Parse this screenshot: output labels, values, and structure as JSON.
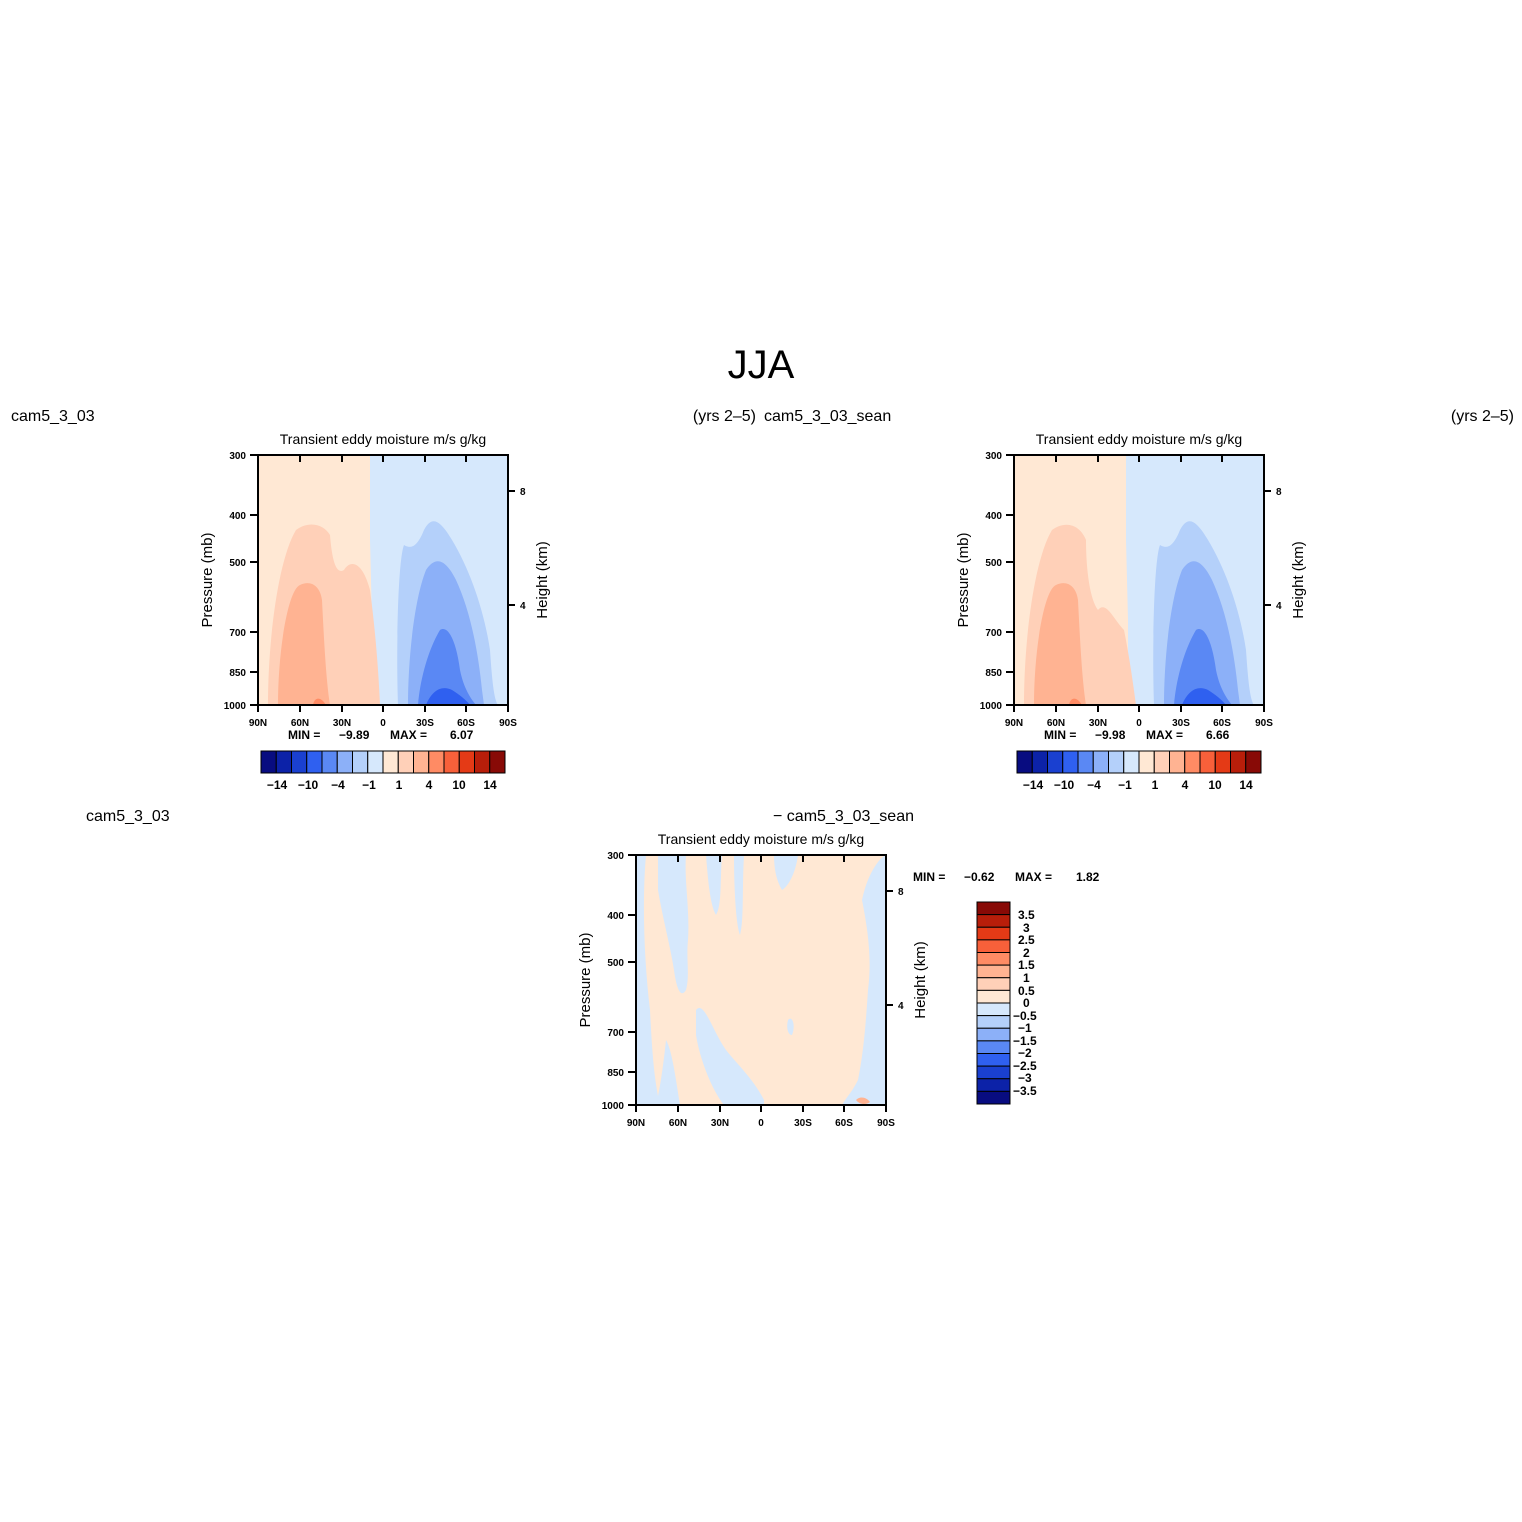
{
  "page": {
    "title": "JJA"
  },
  "colors": {
    "pos": [
      "#ffe8d4",
      "#ffd0b8",
      "#ffb392",
      "#ff8b64",
      "#f8603a",
      "#e43a16",
      "#b81e0a",
      "#880a06"
    ],
    "neg": [
      "#d6e8fc",
      "#b4d0fa",
      "#8cb0f8",
      "#5a88f4",
      "#2f60f0",
      "#1a40d0",
      "#0c22a8",
      "#080c80"
    ],
    "diff_pos": [
      "#ffe8d4",
      "#ffd0b8",
      "#ffb392",
      "#ff8b64",
      "#f8603a",
      "#e43a16",
      "#b81e0a",
      "#880a06"
    ],
    "diff_neg": [
      "#d6e8fc",
      "#b4d0fa",
      "#8cb0f8",
      "#5a88f4",
      "#2f60f0",
      "#1a40d0",
      "#0c22a8",
      "#080c80"
    ]
  },
  "chart_data": [
    {
      "type": "heatmap",
      "panel": "case",
      "left_label": "cam5_3_03",
      "right_label": "(yrs 2–5)",
      "title": "Transient eddy moisture m/s g/kg",
      "ylabel": "Pressure (mb)",
      "ylabel_right": "Height (km)",
      "x_ticks": [
        "90N",
        "60N",
        "30N",
        "0",
        "30S",
        "60S",
        "90S"
      ],
      "y_ticks": [
        "300",
        "400",
        "500",
        "700",
        "850",
        "1000"
      ],
      "y_ticks_right": [
        "8",
        "4"
      ],
      "min_label": "MIN =",
      "min_value": "−9.89",
      "max_label": "MAX =",
      "max_value": "6.07",
      "colorbar_labels": [
        "−14",
        "−10",
        "−4",
        "−1",
        "1",
        "4",
        "10",
        "14"
      ]
    },
    {
      "type": "heatmap",
      "panel": "control",
      "left_label": "cam5_3_03_sean",
      "right_label": "(yrs 2–5)",
      "title": "Transient eddy moisture m/s g/kg",
      "ylabel": "Pressure (mb)",
      "ylabel_right": "Height (km)",
      "x_ticks": [
        "90N",
        "60N",
        "30N",
        "0",
        "30S",
        "60S",
        "90S"
      ],
      "y_ticks": [
        "300",
        "400",
        "500",
        "700",
        "850",
        "1000"
      ],
      "y_ticks_right": [
        "8",
        "4"
      ],
      "min_label": "MIN =",
      "min_value": "−9.98",
      "max_label": "MAX =",
      "max_value": "6.66",
      "colorbar_labels": [
        "−14",
        "−10",
        "−4",
        "−1",
        "1",
        "4",
        "10",
        "14"
      ]
    },
    {
      "type": "heatmap",
      "panel": "difference",
      "left_label": "cam5_3_03",
      "right_label": "− cam5_3_03_sean",
      "title": "Transient eddy moisture m/s g/kg",
      "ylabel": "Pressure (mb)",
      "ylabel_right": "Height (km)",
      "x_ticks": [
        "90N",
        "60N",
        "30N",
        "0",
        "30S",
        "60S",
        "90S"
      ],
      "y_ticks": [
        "300",
        "400",
        "500",
        "700",
        "850",
        "1000"
      ],
      "y_ticks_right": [
        "8",
        "4"
      ],
      "min_label": "MIN =",
      "min_value": "−0.62",
      "max_label": "MAX =",
      "max_value": "1.82",
      "colorbar_labels": [
        "3.5",
        "3",
        "2.5",
        "2",
        "1.5",
        "1",
        "0.5",
        "0",
        "−0.5",
        "−1",
        "−1.5",
        "−2",
        "−2.5",
        "−3",
        "−3.5"
      ]
    }
  ]
}
